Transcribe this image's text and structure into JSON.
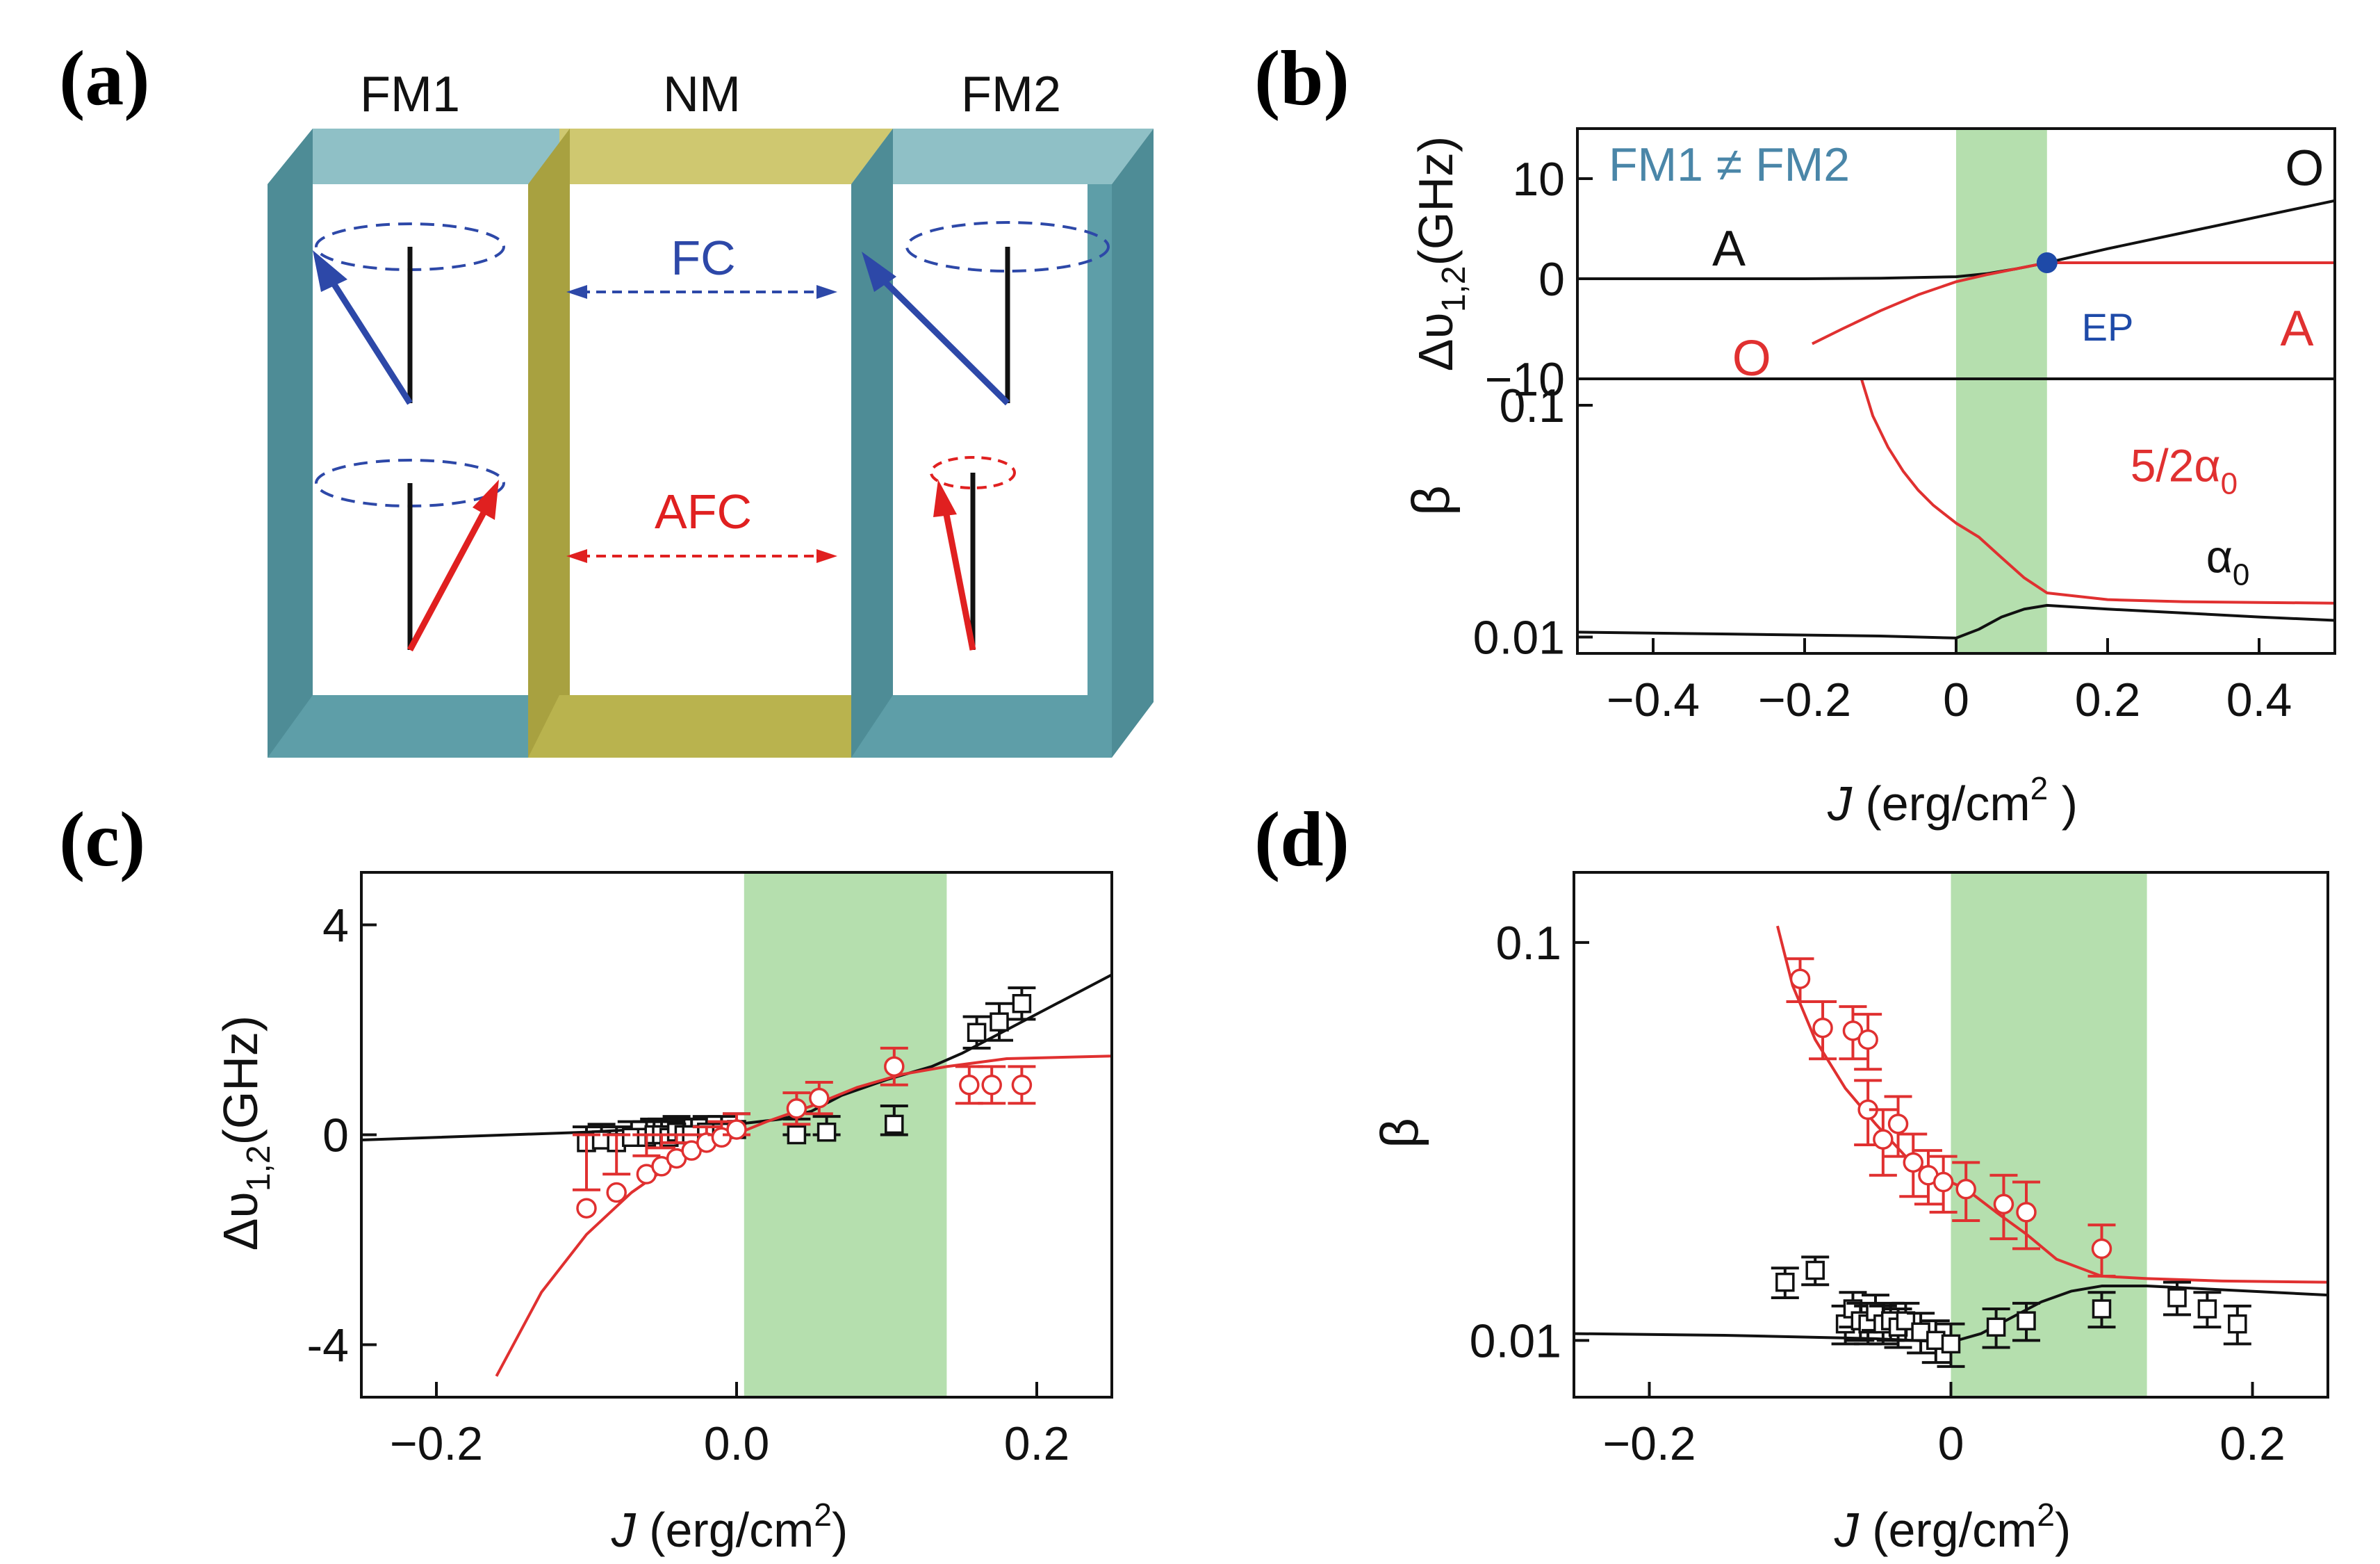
{
  "panel_labels": {
    "a": "(a)",
    "b": "(b)",
    "c": "(c)",
    "d": "(d)"
  },
  "colors": {
    "frame_fm": "#5e9ea8",
    "frame_nm": "#b9b34e",
    "arrow_fc": "#2d48a8",
    "arrow_afc": "#e02020",
    "curve_black": "#111111",
    "curve_red": "#e03030",
    "shade": "#b5dfae",
    "ep_dot": "#1e4aa8",
    "label_blue": "#4a86a8"
  },
  "schematic": {
    "layer_labels": {
      "fm1": "FM1",
      "nm": "NM",
      "fm2": "FM2"
    },
    "coupling_fc": "FC",
    "coupling_afc": "AFC"
  },
  "chart_data": [
    {
      "id": "b_top",
      "type": "line",
      "title": "FM1 ≠ FM2",
      "ylabel_main": "Δυ",
      "ylabel_sub": "1,2",
      "ylabel_unit": "(GHz)",
      "xlim": [
        -0.5,
        0.5
      ],
      "ylim": [
        -10,
        15
      ],
      "yticks": [
        "10",
        "0",
        "−10"
      ],
      "ytick_values": [
        10,
        0,
        -10
      ],
      "shaded_region": [
        0,
        0.12
      ],
      "series": [
        {
          "name": "black",
          "color": "#111111",
          "x": [
            -0.5,
            -0.2,
            -0.1,
            0.0,
            0.04,
            0.08,
            0.12,
            0.2,
            0.3,
            0.4,
            0.5
          ],
          "y": [
            0,
            0,
            0.05,
            0.2,
            0.5,
            1.0,
            1.6,
            3.0,
            4.6,
            6.2,
            7.8
          ]
        },
        {
          "name": "red",
          "color": "#e03030",
          "x": [
            -0.19,
            -0.15,
            -0.1,
            -0.05,
            0.0,
            0.04,
            0.08,
            0.12,
            0.2,
            0.3,
            0.4,
            0.5
          ],
          "y": [
            -6.5,
            -5.0,
            -3.2,
            -1.6,
            -0.3,
            0.4,
            1.0,
            1.6,
            1.6,
            1.6,
            1.6,
            1.6
          ]
        }
      ],
      "annotations": [
        {
          "text": "A",
          "color": "#111111",
          "x": -0.3,
          "y": 3
        },
        {
          "text": "O",
          "color": "#111111",
          "x": 0.46,
          "y": 11
        },
        {
          "text": "O",
          "color": "#e03030",
          "x": -0.27,
          "y": -8
        },
        {
          "text": "A",
          "color": "#e03030",
          "x": 0.45,
          "y": -5
        },
        {
          "text": "EP",
          "color": "#1e4aa8",
          "x": 0.2,
          "y": -4.5
        }
      ],
      "points": [
        {
          "name": "EP",
          "x": 0.12,
          "y": 1.6
        }
      ]
    },
    {
      "id": "b_bottom",
      "type": "line",
      "ylabel": "β",
      "xlabel_italic": "J",
      "xlabel_unit": " (erg/cm",
      "xlabel_sup": "2",
      "xlabel_close": " )",
      "xscale_min": -0.5,
      "xscale_max": 0.5,
      "yscale": "log",
      "ylim": [
        0.0085,
        0.13
      ],
      "xticks": [
        "−0.4",
        "−0.2",
        "0",
        "0.2",
        "0.4"
      ],
      "xtick_values": [
        -0.4,
        -0.2,
        0,
        0.2,
        0.4
      ],
      "yticks": [
        "0.1",
        "0.01"
      ],
      "ytick_values": [
        0.1,
        0.01
      ],
      "shaded_region": [
        0,
        0.12
      ],
      "series": [
        {
          "name": "black",
          "color": "#111111",
          "x": [
            -0.5,
            -0.3,
            -0.1,
            0.0,
            0.03,
            0.06,
            0.09,
            0.12,
            0.2,
            0.3,
            0.4,
            0.5
          ],
          "y": [
            0.0105,
            0.0103,
            0.0101,
            0.0099,
            0.0108,
            0.0122,
            0.0132,
            0.0137,
            0.0132,
            0.0127,
            0.0122,
            0.0118
          ]
        },
        {
          "name": "red",
          "color": "#e03030",
          "x": [
            -0.125,
            -0.11,
            -0.09,
            -0.07,
            -0.05,
            -0.03,
            0.0,
            0.03,
            0.06,
            0.09,
            0.12,
            0.2,
            0.3,
            0.4,
            0.5
          ],
          "y": [
            0.13,
            0.09,
            0.066,
            0.052,
            0.043,
            0.037,
            0.031,
            0.027,
            0.022,
            0.018,
            0.0155,
            0.0145,
            0.0142,
            0.0141,
            0.014
          ]
        }
      ],
      "annotations": [
        {
          "text": "5/2α",
          "sub": "0",
          "color": "#e03030",
          "x": 0.23,
          "y": 0.047
        },
        {
          "text": "α",
          "sub": "0",
          "color": "#111111",
          "x": 0.33,
          "y": 0.019
        }
      ]
    },
    {
      "id": "c",
      "type": "scatter",
      "ylabel_main": "Δυ",
      "ylabel_sub": "1,2",
      "ylabel_unit": "(GHz)",
      "xlabel_italic": "J",
      "xlabel_unit": " (erg/cm",
      "xlabel_sup": "2",
      "xlabel_close": ")",
      "xlim": [
        -0.25,
        0.25
      ],
      "ylim": [
        -5,
        5
      ],
      "xticks": [
        "−0.2",
        "0.0",
        "0.2"
      ],
      "xtick_values": [
        -0.2,
        0,
        0.2
      ],
      "yticks": [
        "4",
        "0",
        "-4"
      ],
      "ytick_values": [
        4,
        0,
        -4
      ],
      "shaded_region": [
        0.005,
        0.14
      ],
      "series": [
        {
          "name": "black-fit",
          "kind": "line",
          "color": "#111111",
          "x": [
            -0.25,
            -0.1,
            0.0,
            0.03,
            0.05,
            0.07,
            0.1,
            0.13,
            0.15,
            0.18,
            0.21,
            0.25
          ],
          "y": [
            -0.1,
            0.05,
            0.2,
            0.3,
            0.45,
            0.75,
            1.05,
            1.3,
            1.55,
            2.0,
            2.45,
            3.05
          ]
        },
        {
          "name": "red-fit",
          "kind": "line",
          "color": "#e03030",
          "x": [
            -0.16,
            -0.13,
            -0.1,
            -0.07,
            -0.04,
            -0.01,
            0.02,
            0.05,
            0.08,
            0.11,
            0.14,
            0.18,
            0.25
          ],
          "y": [
            -4.6,
            -3.0,
            -1.9,
            -1.1,
            -0.5,
            -0.1,
            0.25,
            0.55,
            0.9,
            1.15,
            1.3,
            1.45,
            1.5
          ]
        },
        {
          "name": "black-data",
          "kind": "points",
          "marker": "square",
          "color": "#111111",
          "x": [
            -0.1,
            -0.09,
            -0.08,
            -0.07,
            -0.06,
            -0.055,
            -0.05,
            -0.045,
            -0.04,
            -0.035,
            -0.03,
            -0.02,
            -0.01,
            0.0,
            0.04,
            0.06,
            0.105,
            0.16,
            0.175,
            0.19
          ],
          "y": [
            -0.15,
            -0.1,
            -0.15,
            -0.05,
            -0.05,
            0.0,
            0.0,
            -0.05,
            0.05,
            0.0,
            0.0,
            0.05,
            0.05,
            0.1,
            0.0,
            0.05,
            0.2,
            1.95,
            2.15,
            2.5
          ],
          "err": [
            0.3,
            0.3,
            0.3,
            0.3,
            0.3,
            0.3,
            0.3,
            0.3,
            0.3,
            0.3,
            0.3,
            0.3,
            0.3,
            0.3,
            0.3,
            0.3,
            0.35,
            0.3,
            0.35,
            0.3
          ]
        },
        {
          "name": "red-data",
          "kind": "points",
          "marker": "circle",
          "color": "#e03030",
          "x": [
            -0.1,
            -0.08,
            -0.06,
            -0.05,
            -0.04,
            -0.03,
            -0.02,
            -0.01,
            0.0,
            0.04,
            0.055,
            0.105,
            0.155,
            0.17,
            0.19
          ],
          "y": [
            -1.4,
            -1.1,
            -0.75,
            -0.6,
            -0.45,
            -0.3,
            -0.15,
            -0.05,
            0.1,
            0.5,
            0.7,
            1.3,
            0.95,
            0.95,
            0.95
          ],
          "err": [
            0.35,
            0.35,
            0.35,
            0.35,
            0.3,
            0.3,
            0.3,
            0.3,
            0.3,
            0.3,
            0.3,
            0.35,
            0.35,
            0.35,
            0.35
          ]
        }
      ]
    },
    {
      "id": "d",
      "type": "scatter",
      "ylabel": "β",
      "xlabel_italic": "J",
      "xlabel_unit": " (erg/cm",
      "xlabel_sup": "2",
      "xlabel_close": ")",
      "xlim": [
        -0.25,
        0.25
      ],
      "yscale": "log",
      "ylim": [
        0.0072,
        0.15
      ],
      "xticks": [
        "−0.2",
        "0",
        "0.2"
      ],
      "xtick_values": [
        -0.2,
        0,
        0.2
      ],
      "yticks": [
        "0.1",
        "0.01"
      ],
      "ytick_values": [
        0.1,
        0.01
      ],
      "shaded_region": [
        0.0,
        0.13
      ],
      "series": [
        {
          "name": "black-fit",
          "kind": "line",
          "color": "#111111",
          "x": [
            -0.25,
            -0.15,
            -0.05,
            0.0,
            0.02,
            0.04,
            0.06,
            0.08,
            0.1,
            0.13,
            0.18,
            0.25
          ],
          "y": [
            0.0104,
            0.0103,
            0.0101,
            0.0099,
            0.0104,
            0.0114,
            0.0125,
            0.0133,
            0.0137,
            0.0137,
            0.0134,
            0.013
          ]
        },
        {
          "name": "red-fit",
          "kind": "line",
          "color": "#e03030",
          "x": [
            -0.115,
            -0.105,
            -0.09,
            -0.07,
            -0.05,
            -0.03,
            -0.01,
            0.01,
            0.03,
            0.05,
            0.07,
            0.1,
            0.13,
            0.18,
            0.25
          ],
          "y": [
            0.11,
            0.078,
            0.057,
            0.043,
            0.035,
            0.029,
            0.026,
            0.024,
            0.021,
            0.0185,
            0.016,
            0.0145,
            0.0143,
            0.0141,
            0.014
          ]
        },
        {
          "name": "black-data",
          "kind": "points",
          "marker": "square",
          "color": "#111111",
          "x": [
            -0.11,
            -0.09,
            -0.07,
            -0.065,
            -0.06,
            -0.055,
            -0.05,
            -0.045,
            -0.04,
            -0.035,
            -0.03,
            -0.02,
            -0.01,
            0.0,
            0.03,
            0.05,
            0.1,
            0.15,
            0.17,
            0.19
          ],
          "y": [
            0.014,
            0.015,
            0.011,
            0.012,
            0.0112,
            0.011,
            0.0118,
            0.011,
            0.0112,
            0.0108,
            0.0112,
            0.0105,
            0.01,
            0.0098,
            0.0108,
            0.0112,
            0.012,
            0.0128,
            0.012,
            0.011
          ],
          "err": [
            0.0012,
            0.0012,
            0.0012,
            0.0012,
            0.0012,
            0.0012,
            0.0012,
            0.0012,
            0.0012,
            0.0012,
            0.0012,
            0.0012,
            0.0012,
            0.0012,
            0.0012,
            0.0012,
            0.0012,
            0.0012,
            0.0012,
            0.0012
          ]
        },
        {
          "name": "red-data",
          "kind": "points",
          "marker": "circle",
          "color": "#e03030",
          "x": [
            -0.1,
            -0.085,
            -0.065,
            -0.055,
            -0.055,
            -0.045,
            -0.035,
            -0.025,
            -0.015,
            -0.005,
            0.01,
            0.035,
            0.05,
            0.1
          ],
          "y": [
            0.081,
            0.061,
            0.06,
            0.057,
            0.038,
            0.032,
            0.035,
            0.028,
            0.026,
            0.025,
            0.024,
            0.022,
            0.021,
            0.017
          ],
          "err": [
            0.01,
            0.01,
            0.009,
            0.009,
            0.007,
            0.006,
            0.006,
            0.005,
            0.004,
            0.004,
            0.004,
            0.004,
            0.004,
            0.0025
          ]
        }
      ]
    }
  ]
}
